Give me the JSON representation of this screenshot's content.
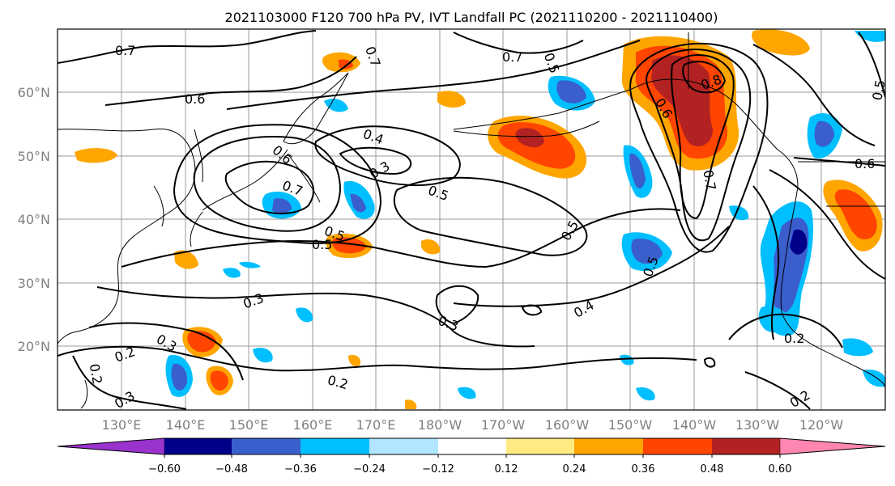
{
  "title": "2021103000 F120 700 hPa PV, IVT Landfall PC (2021110200 - 2021110400)",
  "lat_ticks": [
    "20°N",
    "30°N",
    "40°N",
    "50°N",
    "60°N"
  ],
  "lon_ticks": [
    "130°E",
    "140°E",
    "150°E",
    "160°E",
    "170°E",
    "180°W",
    "170°W",
    "160°W",
    "150°W",
    "140°W",
    "130°W",
    "120°W"
  ],
  "colorbar": {
    "labels": [
      "−0.60",
      "−0.48",
      "−0.36",
      "−0.24",
      "−0.12",
      "0.12",
      "0.24",
      "0.36",
      "0.48",
      "0.60"
    ],
    "colors": [
      "#9a32cd",
      "#00008b",
      "#3a5fcd",
      "#00bfff",
      "#b2e5ff",
      "#ffffff",
      "#ffeb82",
      "#ffa500",
      "#ff4500",
      "#b22222",
      "#ff86b0"
    ]
  },
  "contour_labels": [
    "0.7",
    "0.7",
    "0.7",
    "0.6",
    "0.6",
    "0.5",
    "0.4",
    "0.3",
    "0.5",
    "0.7",
    "0.5",
    "0.5",
    "0.5",
    "0.3",
    "0.4",
    "0.3",
    "0.5",
    "0.6",
    "0.8",
    "0.7",
    "0.6",
    "0.5",
    "0.2",
    "0.2",
    "0.3",
    "0.2",
    "0.3",
    "0.2",
    "0.2"
  ]
}
